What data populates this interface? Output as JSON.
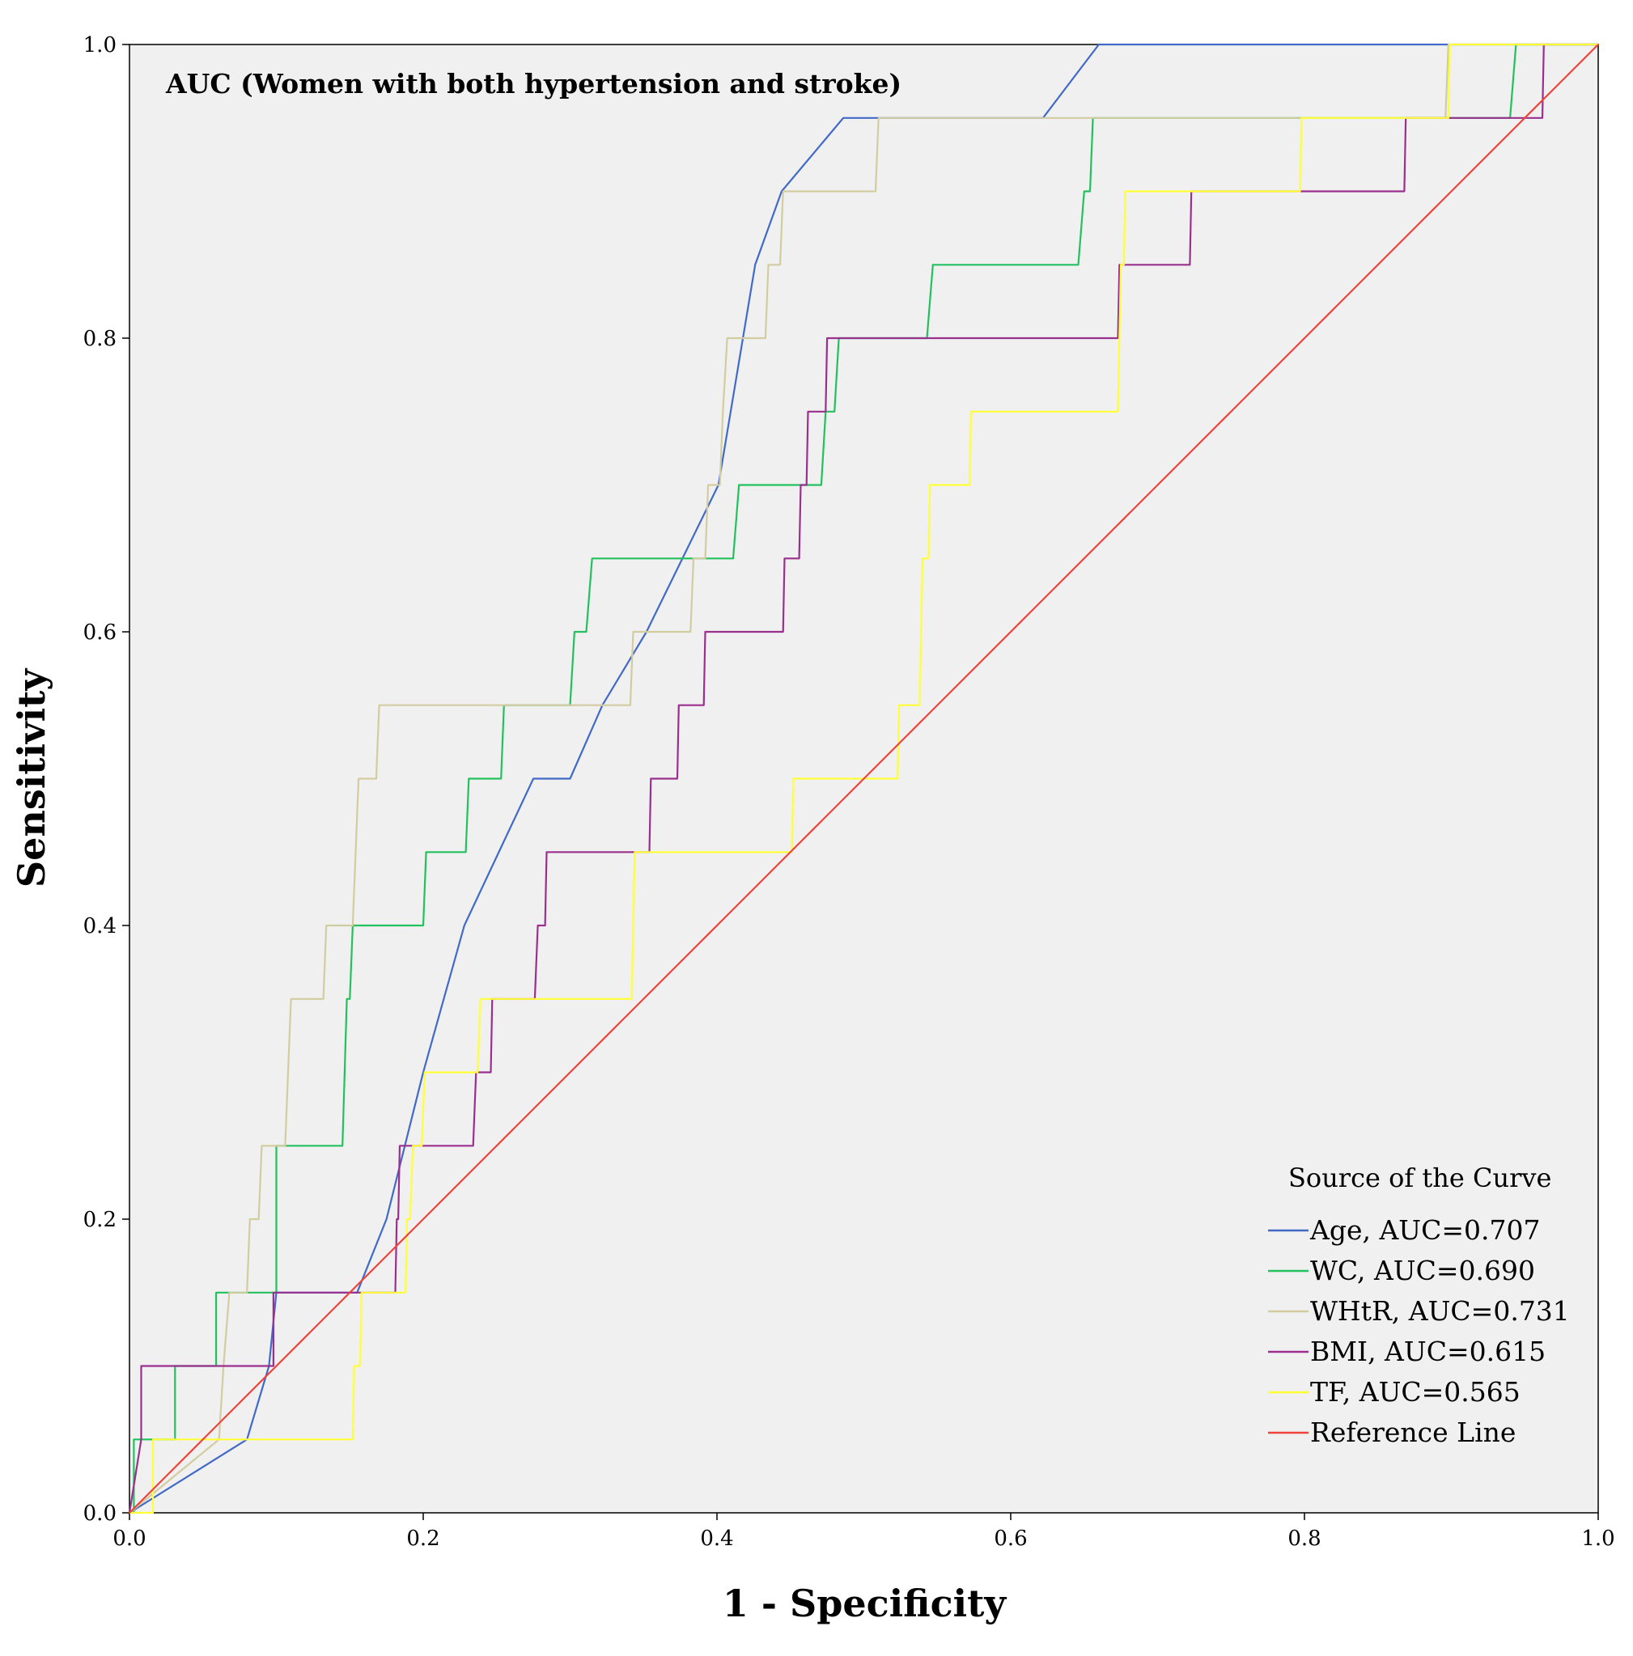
{
  "chart_data": {
    "type": "line",
    "title": "AUC (Women with both hypertension and stroke)",
    "xlabel": "1 - Specificity",
    "ylabel": "Sensitivity",
    "xlim": [
      0,
      1
    ],
    "ylim": [
      0,
      1
    ],
    "xticks": [
      "0.0",
      "0.2",
      "0.4",
      "0.6",
      "0.8",
      "1.0"
    ],
    "yticks": [
      "0.0",
      "0.2",
      "0.4",
      "0.6",
      "0.8",
      "1.0"
    ],
    "legend_title": "Source of the Curve",
    "legend_position": "bottom-right",
    "series": [
      {
        "name": "Age, AUC=0.707",
        "color": "#4169c8",
        "points": [
          [
            0,
            0
          ],
          [
            0.08,
            0.05
          ],
          [
            0.095,
            0.1
          ],
          [
            0.1,
            0.15
          ],
          [
            0.155,
            0.15
          ],
          [
            0.175,
            0.2
          ],
          [
            0.2,
            0.3
          ],
          [
            0.228,
            0.4
          ],
          [
            0.275,
            0.5
          ],
          [
            0.3,
            0.5
          ],
          [
            0.322,
            0.55
          ],
          [
            0.352,
            0.6
          ],
          [
            0.401,
            0.7
          ],
          [
            0.426,
            0.85
          ],
          [
            0.444,
            0.9
          ],
          [
            0.486,
            0.95
          ],
          [
            0.622,
            0.95
          ],
          [
            0.66,
            1.0
          ],
          [
            1.0,
            1.0
          ]
        ]
      },
      {
        "name": "WC, AUC=0.690",
        "color": "#22c15e",
        "points": [
          [
            0,
            0
          ],
          [
            0.003,
            0
          ],
          [
            0.003,
            0.05
          ],
          [
            0.031,
            0.05
          ],
          [
            0.031,
            0.1
          ],
          [
            0.059,
            0.1
          ],
          [
            0.059,
            0.15
          ],
          [
            0.1,
            0.15
          ],
          [
            0.1,
            0.25
          ],
          [
            0.145,
            0.25
          ],
          [
            0.148,
            0.35
          ],
          [
            0.15,
            0.35
          ],
          [
            0.152,
            0.4
          ],
          [
            0.2,
            0.4
          ],
          [
            0.202,
            0.45
          ],
          [
            0.229,
            0.45
          ],
          [
            0.231,
            0.5
          ],
          [
            0.253,
            0.5
          ],
          [
            0.255,
            0.55
          ],
          [
            0.3,
            0.55
          ],
          [
            0.303,
            0.6
          ],
          [
            0.311,
            0.6
          ],
          [
            0.315,
            0.65
          ],
          [
            0.411,
            0.65
          ],
          [
            0.415,
            0.7
          ],
          [
            0.471,
            0.7
          ],
          [
            0.474,
            0.75
          ],
          [
            0.48,
            0.75
          ],
          [
            0.483,
            0.8
          ],
          [
            0.543,
            0.8
          ],
          [
            0.547,
            0.85
          ],
          [
            0.646,
            0.85
          ],
          [
            0.65,
            0.9
          ],
          [
            0.654,
            0.9
          ],
          [
            0.656,
            0.95
          ],
          [
            0.94,
            0.95
          ],
          [
            0.944,
            1.0
          ],
          [
            1.0,
            1.0
          ]
        ]
      },
      {
        "name": "WHtR, AUC=0.731",
        "color": "#d2cca0",
        "points": [
          [
            0,
            0
          ],
          [
            0.061,
            0.05
          ],
          [
            0.064,
            0.1
          ],
          [
            0.068,
            0.15
          ],
          [
            0.08,
            0.15
          ],
          [
            0.082,
            0.2
          ],
          [
            0.088,
            0.2
          ],
          [
            0.09,
            0.25
          ],
          [
            0.106,
            0.25
          ],
          [
            0.108,
            0.3
          ],
          [
            0.11,
            0.35
          ],
          [
            0.132,
            0.35
          ],
          [
            0.134,
            0.4
          ],
          [
            0.152,
            0.4
          ],
          [
            0.154,
            0.45
          ],
          [
            0.156,
            0.5
          ],
          [
            0.168,
            0.5
          ],
          [
            0.17,
            0.55
          ],
          [
            0.341,
            0.55
          ],
          [
            0.343,
            0.6
          ],
          [
            0.382,
            0.6
          ],
          [
            0.384,
            0.65
          ],
          [
            0.392,
            0.65
          ],
          [
            0.394,
            0.7
          ],
          [
            0.402,
            0.7
          ],
          [
            0.404,
            0.75
          ],
          [
            0.407,
            0.8
          ],
          [
            0.433,
            0.8
          ],
          [
            0.435,
            0.85
          ],
          [
            0.443,
            0.85
          ],
          [
            0.445,
            0.9
          ],
          [
            0.508,
            0.9
          ],
          [
            0.51,
            0.95
          ],
          [
            0.896,
            0.95
          ],
          [
            0.898,
            1.0
          ],
          [
            1.0,
            1.0
          ]
        ]
      },
      {
        "name": "BMI, AUC=0.615",
        "color": "#9a2f8e",
        "points": [
          [
            0,
            0
          ],
          [
            0.008,
            0.05
          ],
          [
            0.008,
            0.1
          ],
          [
            0.098,
            0.1
          ],
          [
            0.098,
            0.15
          ],
          [
            0.181,
            0.15
          ],
          [
            0.182,
            0.2
          ],
          [
            0.183,
            0.2
          ],
          [
            0.184,
            0.25
          ],
          [
            0.234,
            0.25
          ],
          [
            0.236,
            0.3
          ],
          [
            0.246,
            0.3
          ],
          [
            0.247,
            0.35
          ],
          [
            0.276,
            0.35
          ],
          [
            0.278,
            0.4
          ],
          [
            0.283,
            0.4
          ],
          [
            0.284,
            0.45
          ],
          [
            0.354,
            0.45
          ],
          [
            0.355,
            0.5
          ],
          [
            0.373,
            0.5
          ],
          [
            0.374,
            0.55
          ],
          [
            0.391,
            0.55
          ],
          [
            0.392,
            0.6
          ],
          [
            0.445,
            0.6
          ],
          [
            0.446,
            0.65
          ],
          [
            0.456,
            0.65
          ],
          [
            0.457,
            0.7
          ],
          [
            0.461,
            0.7
          ],
          [
            0.462,
            0.75
          ],
          [
            0.474,
            0.75
          ],
          [
            0.475,
            0.8
          ],
          [
            0.673,
            0.8
          ],
          [
            0.674,
            0.85
          ],
          [
            0.722,
            0.85
          ],
          [
            0.723,
            0.9
          ],
          [
            0.868,
            0.9
          ],
          [
            0.869,
            0.95
          ],
          [
            0.962,
            0.95
          ],
          [
            0.963,
            1.0
          ],
          [
            1.0,
            1.0
          ]
        ]
      },
      {
        "name": "TF, AUC=0.565",
        "color": "#ffff36",
        "points": [
          [
            0,
            0
          ],
          [
            0.016,
            0
          ],
          [
            0.016,
            0.05
          ],
          [
            0.152,
            0.05
          ],
          [
            0.153,
            0.1
          ],
          [
            0.157,
            0.1
          ],
          [
            0.158,
            0.15
          ],
          [
            0.188,
            0.15
          ],
          [
            0.189,
            0.2
          ],
          [
            0.191,
            0.2
          ],
          [
            0.193,
            0.25
          ],
          [
            0.199,
            0.25
          ],
          [
            0.201,
            0.3
          ],
          [
            0.237,
            0.3
          ],
          [
            0.239,
            0.35
          ],
          [
            0.342,
            0.35
          ],
          [
            0.343,
            0.4
          ],
          [
            0.344,
            0.45
          ],
          [
            0.451,
            0.45
          ],
          [
            0.452,
            0.5
          ],
          [
            0.523,
            0.5
          ],
          [
            0.524,
            0.55
          ],
          [
            0.538,
            0.55
          ],
          [
            0.539,
            0.6
          ],
          [
            0.54,
            0.65
          ],
          [
            0.544,
            0.65
          ],
          [
            0.545,
            0.7
          ],
          [
            0.572,
            0.7
          ],
          [
            0.573,
            0.75
          ],
          [
            0.673,
            0.75
          ],
          [
            0.674,
            0.8
          ],
          [
            0.675,
            0.85
          ],
          [
            0.677,
            0.85
          ],
          [
            0.678,
            0.9
          ],
          [
            0.797,
            0.9
          ],
          [
            0.798,
            0.95
          ],
          [
            0.898,
            0.95
          ],
          [
            0.899,
            1.0
          ],
          [
            1.0,
            1.0
          ]
        ]
      },
      {
        "name": "Reference Line",
        "color": "#f0433c",
        "points": [
          [
            0,
            0
          ],
          [
            1,
            1
          ]
        ]
      }
    ]
  }
}
